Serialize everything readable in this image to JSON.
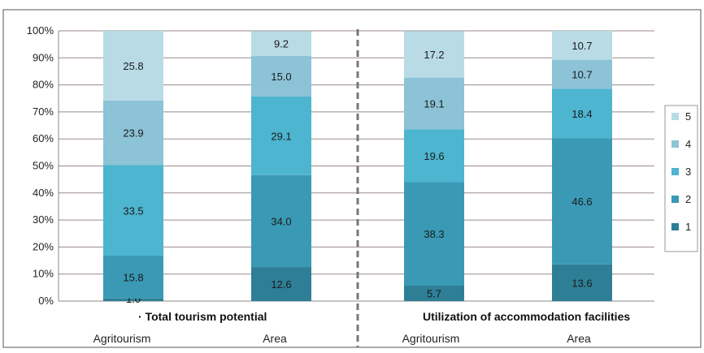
{
  "chart_data": {
    "type": "bar",
    "stacked": "percent",
    "y_ticks": [
      "0%",
      "10%",
      "20%",
      "30%",
      "40%",
      "50%",
      "60%",
      "70%",
      "80%",
      "90%",
      "100%"
    ],
    "ylim": [
      0,
      100
    ],
    "grid": true,
    "legend_position": "right",
    "groups": [
      {
        "title": "Total tourism potential",
        "bullet": "·",
        "categories": [
          "Agritourism",
          "Area"
        ]
      },
      {
        "title": "Utilization of accommodation facilities",
        "bullet": "",
        "categories": [
          "Agritourism",
          "Area"
        ]
      }
    ],
    "series": [
      {
        "name": "1",
        "color": "#2e7f96",
        "values": [
          1.0,
          12.6,
          5.7,
          13.6
        ]
      },
      {
        "name": "2",
        "color": "#3a9ab5",
        "values": [
          15.8,
          34.0,
          38.3,
          46.6
        ]
      },
      {
        "name": "3",
        "color": "#4db5d0",
        "values": [
          33.5,
          29.1,
          19.6,
          18.4
        ]
      },
      {
        "name": "4",
        "color": "#8cc3d6",
        "values": [
          23.9,
          15.0,
          19.1,
          10.7
        ]
      },
      {
        "name": "5",
        "color": "#b8dbe6",
        "values": [
          25.8,
          9.2,
          17.2,
          10.7
        ]
      }
    ]
  }
}
